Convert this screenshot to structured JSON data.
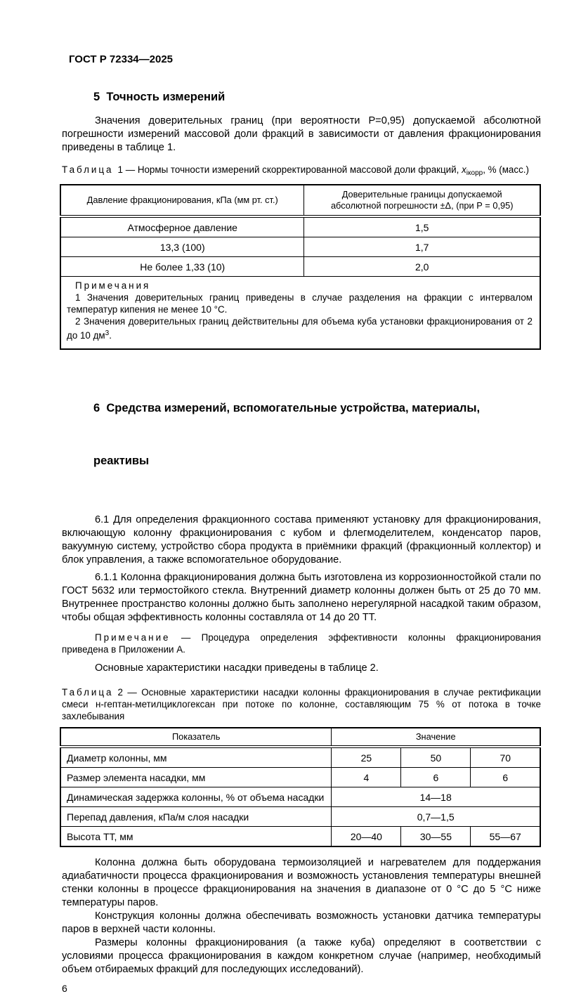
{
  "doc": {
    "header": "ГОСТ Р 72334—2025",
    "page_number": "6"
  },
  "section5": {
    "title": "5  Точность измерений",
    "paragraph": "Значения доверительных границ (при вероятности Р=0,95) допускаемой абсолютной погрешности измерений массовой доли фракций в зависимости от давления фракционирования приведены в таблице 1."
  },
  "table1": {
    "caption": {
      "label": "Таблица",
      "number": "1",
      "dash": " — ",
      "text": "Нормы точности измерений скорректированной массовой доли фракций, ",
      "variable": "x",
      "subscript": "iкорр",
      "tail": ", % (масс.)"
    },
    "header": {
      "col1": "Давление фракционирования, кПа (мм рт. ст.)",
      "col2": "Доверительные границы допускаемой абсолютной погрешности ±Δ, (при Р = 0,95)"
    },
    "rows": [
      {
        "pressure": "Атмосферное давление",
        "limit": "1,5"
      },
      {
        "pressure": "13,3 (100)",
        "limit": "1,7"
      },
      {
        "pressure": "Не более 1,33 (10)",
        "limit": "2,0"
      }
    ],
    "notes": {
      "title": "Примечания",
      "note1": "1 Значения доверительных границ приведены в случае разделения на фракции с интервалом температур кипения не менее 10 °С.",
      "note2_main": "2 Значения доверительных границ действительны для объема куба установки фракционирования от 2 до 10 дм",
      "note2_sup": "3",
      "note2_end": "."
    }
  },
  "section6": {
    "title_line1": "6  Средства измерений, вспомогательные устройства, материалы,",
    "title_line2": "реактивы",
    "para_6_1": "6.1  Для определения фракционного состава применяют установку для фракционирования, включающую колонну фракционирования с кубом и флегмоделителем, конденсатор паров, вакуумную систему, устройство сбора продукта в приёмники фракций (фракционный коллектор) и блок управления, а также вспомогательное оборудование.",
    "para_6_1_1": "6.1.1 Колонна фракционирования должна быть изготовлена из коррозионностойкой стали по ГОСТ 5632 или термостойкого стекла. Внутренний диаметр колонны должен быть от 25 до 70 мм. Внутреннее пространство колонны должно быть заполнено нерегулярной насадкой таким образом, чтобы общая эффективность колонны составляла от 14 до 20 ТТ.",
    "note_label": "Примечание",
    "note_text": " — Процедура определения эффективности колонны фракционирования приведена в Приложении А.",
    "para_intro_table2": "Основные характеристики насадки приведены в таблице 2."
  },
  "table2": {
    "caption": {
      "label": "Таблица",
      "number": "2",
      "dash": " — ",
      "text": "Основные характеристики насадки колонны фракционирования в случае ректификации смеси н-гептан-метилциклогексан при потоке по колонне, составляющим 75 % от потока в точке захлебывания"
    },
    "header": {
      "col_indicator": "Показатель",
      "col_value": "Значение"
    },
    "rows": [
      {
        "label": "Диаметр колонны, мм",
        "v1": "25",
        "v2": "50",
        "v3": "70"
      },
      {
        "label": "Размер элемента насадки, мм",
        "v1": "4",
        "v2": "6",
        "v3": "6"
      },
      {
        "label": "Динамическая задержка колонны, % от объема насадки",
        "value": "14—18"
      },
      {
        "label": "Перепад давления, кПа/м слоя насадки",
        "value": "0,7—1,5"
      },
      {
        "label": "Высота ТТ, мм",
        "v1": "20—40",
        "v2": "30—55",
        "v3": "55—67"
      }
    ]
  },
  "closing": {
    "para1": "Колонна должна быть оборудована термоизоляцией и нагревателем для поддержания адиабатичности процесса фракционирования и возможность установления температуры внешней стенки колонны в процессе фракционирования на значения в диапазоне от 0 °С до 5 °С ниже температуры паров.",
    "para2": "Конструкция колонны должна обеспечивать возможность установки датчика температуры паров в верхней части колонны.",
    "para3": "Размеры колонны фракционирования (а также куба) определяют в соответствии с условиями процесса фракционирования в каждом конкретном случае (например, необходимый объем отбираемых фракций для последующих исследований)."
  }
}
